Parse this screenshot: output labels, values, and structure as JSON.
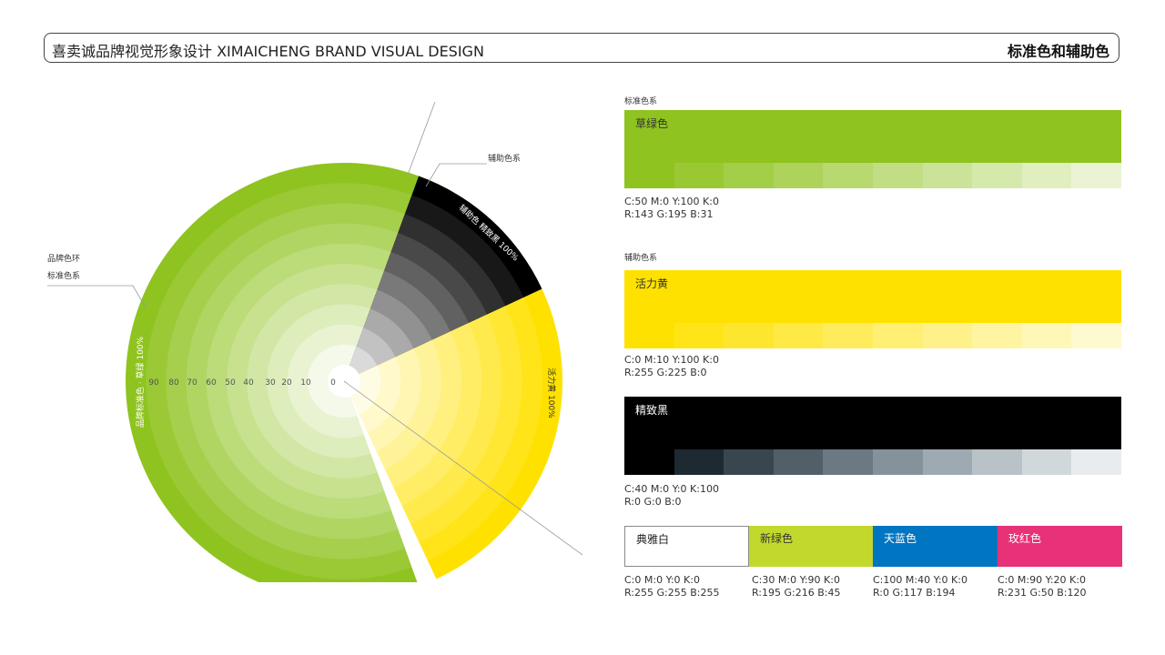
{
  "header": {
    "title": "喜卖诚品牌视觉形象设计 XIMAICHENG BRAND VISUAL DESIGN",
    "section": "标准色和辅助色"
  },
  "wheel": {
    "callout_left_line1": "品牌色环",
    "callout_left_line2": "标准色系",
    "callout_right": "辅助色系",
    "green_arc_label": "品牌标准色 · 草绿 100%",
    "black_arc_label": "辅助色 精致黑 100%",
    "yellow_arc_label": "活力黄 100%",
    "ring_numbers": [
      "90",
      "80",
      "70",
      "60",
      "50",
      "40",
      "30",
      "20",
      "10",
      "0"
    ],
    "colors": {
      "green": "#8fc31f",
      "yellow": "#ffe100",
      "black": "#000000"
    },
    "sectors_deg": {
      "green": [
        160,
        390
      ],
      "black": [
        20,
        65
      ],
      "yellow": [
        65,
        155
      ]
    }
  },
  "standard": {
    "group_label": "标准色系",
    "name": "草绿色",
    "color": "#8fc31f",
    "cmyk": "C:50 M:0 Y:100 K:0",
    "rgb": "R:143 G:195 B:31"
  },
  "auxiliary": {
    "group_label": "辅助色系",
    "yellow": {
      "name": "活力黄",
      "color": "#ffe100",
      "cmyk": "C:0 M:10 Y:100 K:0",
      "rgb": "R:255 G:225 B:0"
    },
    "black": {
      "name": "精致黑",
      "color": "#000000",
      "cmyk": "C:40 M:0 Y:0 K:100",
      "rgb": "R:0 G:0 B:0"
    }
  },
  "extras": [
    {
      "name": "典雅白",
      "color": "#ffffff",
      "text_color": "#222222",
      "cmyk": "C:0 M:0 Y:0 K:0",
      "rgb": "R:255 G:255 B:255"
    },
    {
      "name": "新绿色",
      "color": "#c3d82d",
      "text_color": "#333333",
      "cmyk": "C:30 M:0 Y:90 K:0",
      "rgb": "R:195 G:216 B:45"
    },
    {
      "name": "天蓝色",
      "color": "#0075c2",
      "text_color": "#ffffff",
      "cmyk": "C:100 M:40 Y:0 K:0",
      "rgb": "R:0 G:117 B:194"
    },
    {
      "name": "玫红色",
      "color": "#e73278",
      "text_color": "#ffffff",
      "cmyk": "C:0 M:90 Y:20 K:0",
      "rgb": "R:231 G:50 B:120"
    }
  ],
  "black_strip_colors": [
    "#000000",
    "#1e2a31",
    "#37464f",
    "#505f68",
    "#6a7982",
    "#84939b",
    "#9eaab1",
    "#b8c2c7",
    "#d1d8dc",
    "#e8ecee"
  ]
}
